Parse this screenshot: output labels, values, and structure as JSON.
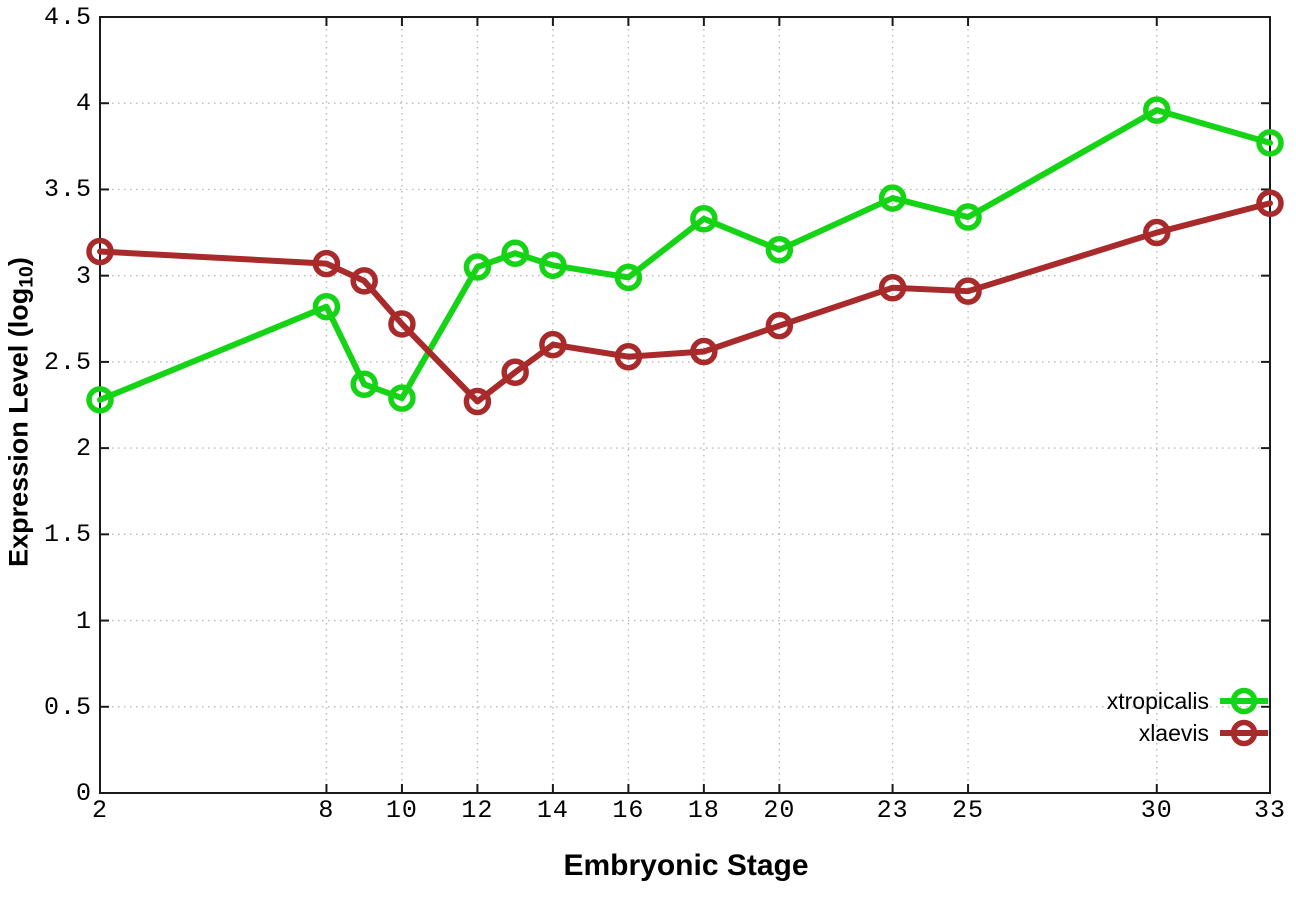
{
  "figure": {
    "xlabel": "Embryonic Stage",
    "ylabel": {
      "main": "Expression Level (log",
      "sub": "10",
      "close": ")"
    }
  },
  "chart_data": {
    "type": "line",
    "title": "",
    "xlabel": "Embryonic Stage",
    "ylabel": "Expression Level (log10)",
    "x": [
      2,
      8,
      9,
      10,
      12,
      13,
      14,
      16,
      18,
      20,
      23,
      25,
      30,
      33
    ],
    "series": [
      {
        "name": "xtropicalis",
        "color": "#15d415",
        "values": [
          2.28,
          2.82,
          2.37,
          2.29,
          3.05,
          3.13,
          3.06,
          2.99,
          3.33,
          3.15,
          3.45,
          3.34,
          3.96,
          3.77
        ]
      },
      {
        "name": "xlaevis",
        "color": "#a82a2a",
        "values": [
          3.14,
          3.07,
          2.97,
          2.72,
          2.27,
          2.44,
          2.6,
          2.53,
          2.56,
          2.71,
          2.93,
          2.91,
          3.25,
          3.42
        ]
      }
    ],
    "xlim": [
      2,
      33
    ],
    "ylim": [
      0,
      4.5
    ],
    "xticks": [
      2,
      8,
      10,
      12,
      14,
      16,
      18,
      20,
      23,
      25,
      30,
      33
    ],
    "xtick_labels": [
      "2",
      "8",
      "10",
      "12",
      "14",
      "16",
      "18",
      "20",
      "23",
      "25",
      "30",
      "33"
    ],
    "yticks": [
      0,
      0.5,
      1,
      1.5,
      2,
      2.5,
      3,
      3.5,
      4,
      4.5
    ],
    "ytick_labels": [
      "0",
      "0.5",
      "1",
      "1.5",
      "2",
      "2.5",
      "3",
      "3.5",
      "4",
      "4.5"
    ],
    "grid": true,
    "legend_position": "inside-bottom-right",
    "marker": "open-circle",
    "background": "#ffffff"
  }
}
